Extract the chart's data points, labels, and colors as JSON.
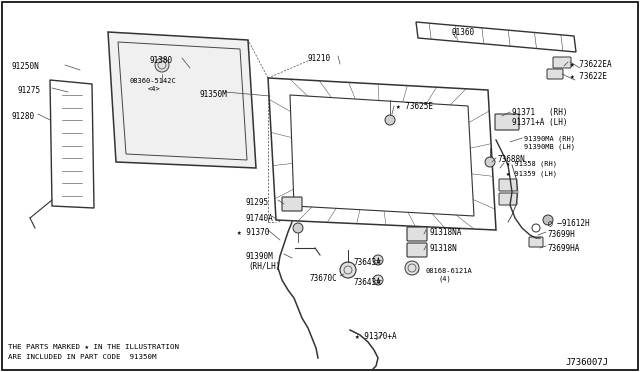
{
  "bg_color": "#ffffff",
  "border_color": "#000000",
  "line_color": "#444444",
  "text_color": "#000000",
  "diagram_id": "J736007J",
  "footnote1": "THE PARTS MARKED ★ IN THE ILLUSTRATION",
  "footnote2": "ARE INCLUDED IN PART CODE  91350M",
  "fig_width": 6.4,
  "fig_height": 3.72,
  "dpi": 100
}
